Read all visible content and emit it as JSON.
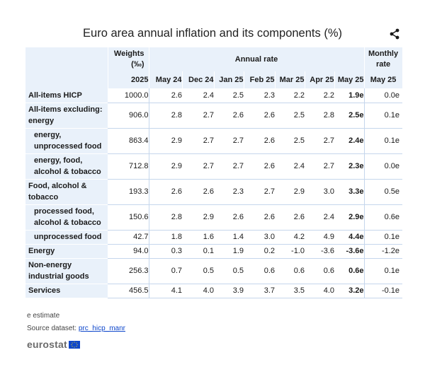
{
  "title": "Euro area annual inflation and its components (%)",
  "share_icon": "share-icon",
  "header": {
    "weights_label": "Weights (‰)",
    "annual_rate_label": "Annual rate",
    "monthly_rate_label": "Monthly rate",
    "weights_year": "2025",
    "months": [
      "May 24",
      "Dec 24",
      "Jan 25",
      "Feb 25",
      "Mar 25",
      "Apr 25",
      "May 25"
    ],
    "monthly_month": "May 25"
  },
  "rows": [
    {
      "label": "All-items HICP",
      "weight": "1000.0",
      "values": [
        "2.6",
        "2.4",
        "2.5",
        "2.3",
        "2.2",
        "2.2",
        "1.9e"
      ],
      "monthly": "0.0e"
    },
    {
      "label": "All-items excluding: energy",
      "weight": "906.0",
      "values": [
        "2.8",
        "2.7",
        "2.6",
        "2.6",
        "2.5",
        "2.8",
        "2.5e"
      ],
      "monthly": "0.1e"
    },
    {
      "label": "energy, unprocessed food",
      "weight": "863.4",
      "values": [
        "2.9",
        "2.7",
        "2.7",
        "2.6",
        "2.5",
        "2.7",
        "2.4e"
      ],
      "monthly": "0.1e"
    },
    {
      "label": "energy, food, alcohol & tobacco",
      "weight": "712.8",
      "values": [
        "2.9",
        "2.7",
        "2.7",
        "2.6",
        "2.4",
        "2.7",
        "2.3e"
      ],
      "monthly": "0.0e"
    },
    {
      "label": "Food, alcohol & tobacco",
      "weight": "193.3",
      "values": [
        "2.6",
        "2.6",
        "2.3",
        "2.7",
        "2.9",
        "3.0",
        "3.3e"
      ],
      "monthly": "0.5e"
    },
    {
      "label": "processed food, alcohol & tobacco",
      "weight": "150.6",
      "values": [
        "2.8",
        "2.9",
        "2.6",
        "2.6",
        "2.6",
        "2.4",
        "2.9e"
      ],
      "monthly": "0.6e"
    },
    {
      "label": "unprocessed food",
      "weight": "42.7",
      "values": [
        "1.8",
        "1.6",
        "1.4",
        "3.0",
        "4.2",
        "4.9",
        "4.4e"
      ],
      "monthly": "0.1e"
    },
    {
      "label": "Energy",
      "weight": "94.0",
      "values": [
        "0.3",
        "0.1",
        "1.9",
        "0.2",
        "-1.0",
        "-3.6",
        "-3.6e"
      ],
      "monthly": "-1.2e"
    },
    {
      "label": "Non-energy industrial goods",
      "weight": "256.3",
      "values": [
        "0.7",
        "0.5",
        "0.5",
        "0.6",
        "0.6",
        "0.6",
        "0.6e"
      ],
      "monthly": "0.1e"
    },
    {
      "label": "Services",
      "weight": "456.5",
      "values": [
        "4.1",
        "4.0",
        "3.9",
        "3.7",
        "3.5",
        "4.0",
        "3.2e"
      ],
      "monthly": "-0.1e"
    }
  ],
  "footnote": "e estimate",
  "source": {
    "prefix": "Source dataset: ",
    "link": "prc_hicp_manr"
  },
  "logo": "eurostat",
  "colors": {
    "header_bg": "#e9f1fa",
    "border": "#c5d6ec",
    "link": "#0e47cb",
    "flag_blue": "#0e47cb",
    "flag_star": "#ffd617"
  }
}
